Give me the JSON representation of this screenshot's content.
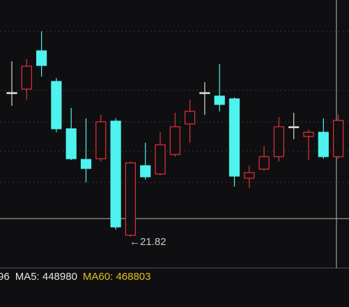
{
  "chart_data": {
    "type": "candlestick",
    "open": [
      23.89,
      23.94,
      24.49,
      24.05,
      23.37,
      22.93,
      22.94,
      23.48,
      21.84,
      22.84,
      22.72,
      23.0,
      23.44,
      23.89,
      23.84,
      23.8,
      22.66,
      22.79,
      22.97,
      23.4,
      23.26,
      23.32,
      22.97
    ],
    "high": [
      24.34,
      24.37,
      24.77,
      24.1,
      23.67,
      23.52,
      23.57,
      23.52,
      22.9,
      23.17,
      23.32,
      23.6,
      23.79,
      24.04,
      24.3,
      23.82,
      22.84,
      23.12,
      23.54,
      23.6,
      23.36,
      23.52,
      23.57
    ],
    "low": [
      23.7,
      23.79,
      24.12,
      23.32,
      22.92,
      22.6,
      22.9,
      21.92,
      21.82,
      22.64,
      22.7,
      22.97,
      23.17,
      23.57,
      23.62,
      22.54,
      22.52,
      22.77,
      22.9,
      23.22,
      22.92,
      22.94,
      22.94
    ],
    "close": [
      23.89,
      24.27,
      24.28,
      23.37,
      22.94,
      22.8,
      23.47,
      21.96,
      22.88,
      22.68,
      23.14,
      23.4,
      23.62,
      23.89,
      23.72,
      22.69,
      22.74,
      22.97,
      23.4,
      23.4,
      23.32,
      22.97,
      23.49
    ],
    "ylim": [
      21.37,
      25.22
    ],
    "up_color": "#e8303a",
    "down_color": "#4ef2ef",
    "flat_color": "#d8d8d8",
    "annotation": "←21.82",
    "legend": [
      {
        "text": "96",
        "color": "#e6e6e6"
      },
      {
        "text": "MA5: 448980",
        "color": "#e6e6e6"
      },
      {
        "text": "MA60: 468803",
        "color": "#e2c21c"
      }
    ]
  }
}
